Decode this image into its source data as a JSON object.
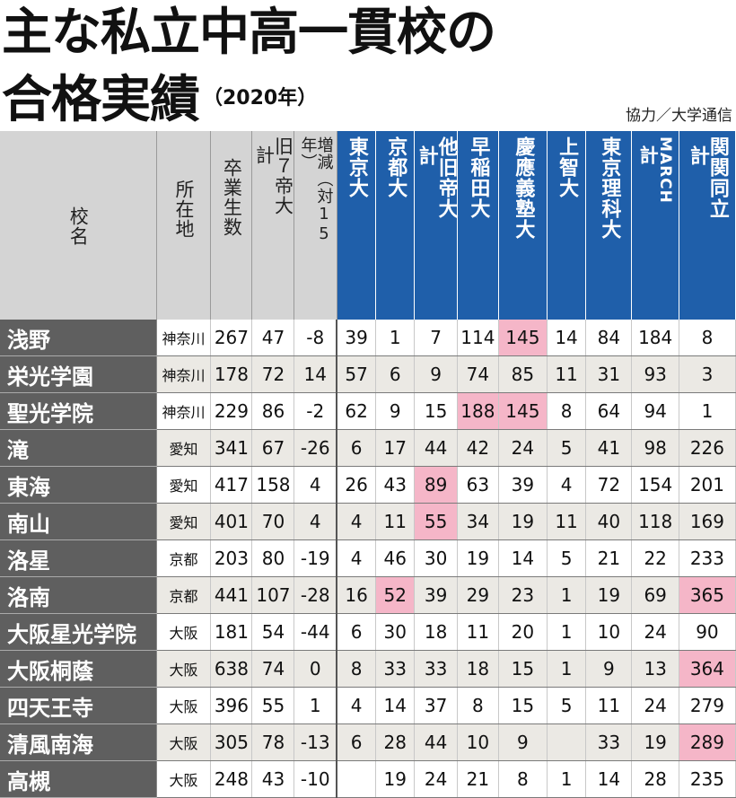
{
  "title": {
    "line1": "主な私立中高一貫校の",
    "line2": "合格実績",
    "year": "（2020年）"
  },
  "credit": "協力／大学通信",
  "headers": {
    "school": "校名",
    "location": "所在地",
    "graduates": "卒業生数",
    "old7": "旧７帝大",
    "old7_kei": "計",
    "change": "増減（対15年）",
    "todai": "東京大",
    "kyodai": "京都大",
    "other_imperial": "他旧帝大",
    "other_imperial_kei": "計",
    "waseda": "早稲田大",
    "keio": "慶應義塾大",
    "sophia": "上智大",
    "tus": "東京理科大",
    "march": "MARCH",
    "march_kei": "計",
    "kankandoritsu": "関関同立",
    "kankandoritsu_kei": "計"
  },
  "highlight_color": "#f5b6c8",
  "header_blue": "#1f5faa",
  "rows": [
    {
      "school": "浅野",
      "loc": "神奈川",
      "v": [
        "267",
        "47",
        "-8",
        "39",
        "1",
        "7",
        "114",
        "145",
        "14",
        "84",
        "184",
        "8"
      ],
      "hl": [
        7
      ]
    },
    {
      "school": "栄光学園",
      "loc": "神奈川",
      "v": [
        "178",
        "72",
        "14",
        "57",
        "6",
        "9",
        "74",
        "85",
        "11",
        "31",
        "93",
        "3"
      ],
      "hl": []
    },
    {
      "school": "聖光学院",
      "loc": "神奈川",
      "v": [
        "229",
        "86",
        "-2",
        "62",
        "9",
        "15",
        "188",
        "145",
        "8",
        "64",
        "94",
        "1"
      ],
      "hl": [
        6,
        7
      ]
    },
    {
      "school": "滝",
      "loc": "愛知",
      "v": [
        "341",
        "67",
        "-26",
        "6",
        "17",
        "44",
        "42",
        "24",
        "5",
        "41",
        "98",
        "226"
      ],
      "hl": []
    },
    {
      "school": "東海",
      "loc": "愛知",
      "v": [
        "417",
        "158",
        "4",
        "26",
        "43",
        "89",
        "63",
        "39",
        "4",
        "72",
        "154",
        "201"
      ],
      "hl": [
        5
      ]
    },
    {
      "school": "南山",
      "loc": "愛知",
      "v": [
        "401",
        "70",
        "4",
        "4",
        "11",
        "55",
        "34",
        "19",
        "11",
        "40",
        "118",
        "169"
      ],
      "hl": [
        5
      ]
    },
    {
      "school": "洛星",
      "loc": "京都",
      "v": [
        "203",
        "80",
        "-19",
        "4",
        "46",
        "30",
        "19",
        "14",
        "5",
        "21",
        "22",
        "233"
      ],
      "hl": []
    },
    {
      "school": "洛南",
      "loc": "京都",
      "v": [
        "441",
        "107",
        "-28",
        "16",
        "52",
        "39",
        "29",
        "23",
        "1",
        "19",
        "69",
        "365"
      ],
      "hl": [
        4,
        11
      ]
    },
    {
      "school": "大阪星光学院",
      "loc": "大阪",
      "v": [
        "181",
        "54",
        "-44",
        "6",
        "30",
        "18",
        "11",
        "20",
        "1",
        "10",
        "24",
        "90"
      ],
      "hl": []
    },
    {
      "school": "大阪桐蔭",
      "loc": "大阪",
      "v": [
        "638",
        "74",
        "0",
        "8",
        "33",
        "33",
        "18",
        "15",
        "1",
        "9",
        "13",
        "364"
      ],
      "hl": [
        11
      ]
    },
    {
      "school": "四天王寺",
      "loc": "大阪",
      "v": [
        "396",
        "55",
        "1",
        "4",
        "14",
        "37",
        "8",
        "15",
        "5",
        "11",
        "24",
        "279"
      ],
      "hl": []
    },
    {
      "school": "清風南海",
      "loc": "大阪",
      "v": [
        "305",
        "78",
        "-13",
        "6",
        "28",
        "44",
        "10",
        "9",
        "",
        "33",
        "19",
        "289"
      ],
      "hl": [
        11
      ]
    },
    {
      "school": "高槻",
      "loc": "大阪",
      "v": [
        "248",
        "43",
        "-10",
        "",
        "19",
        "24",
        "21",
        "8",
        "1",
        "14",
        "28",
        "235"
      ],
      "hl": []
    }
  ]
}
